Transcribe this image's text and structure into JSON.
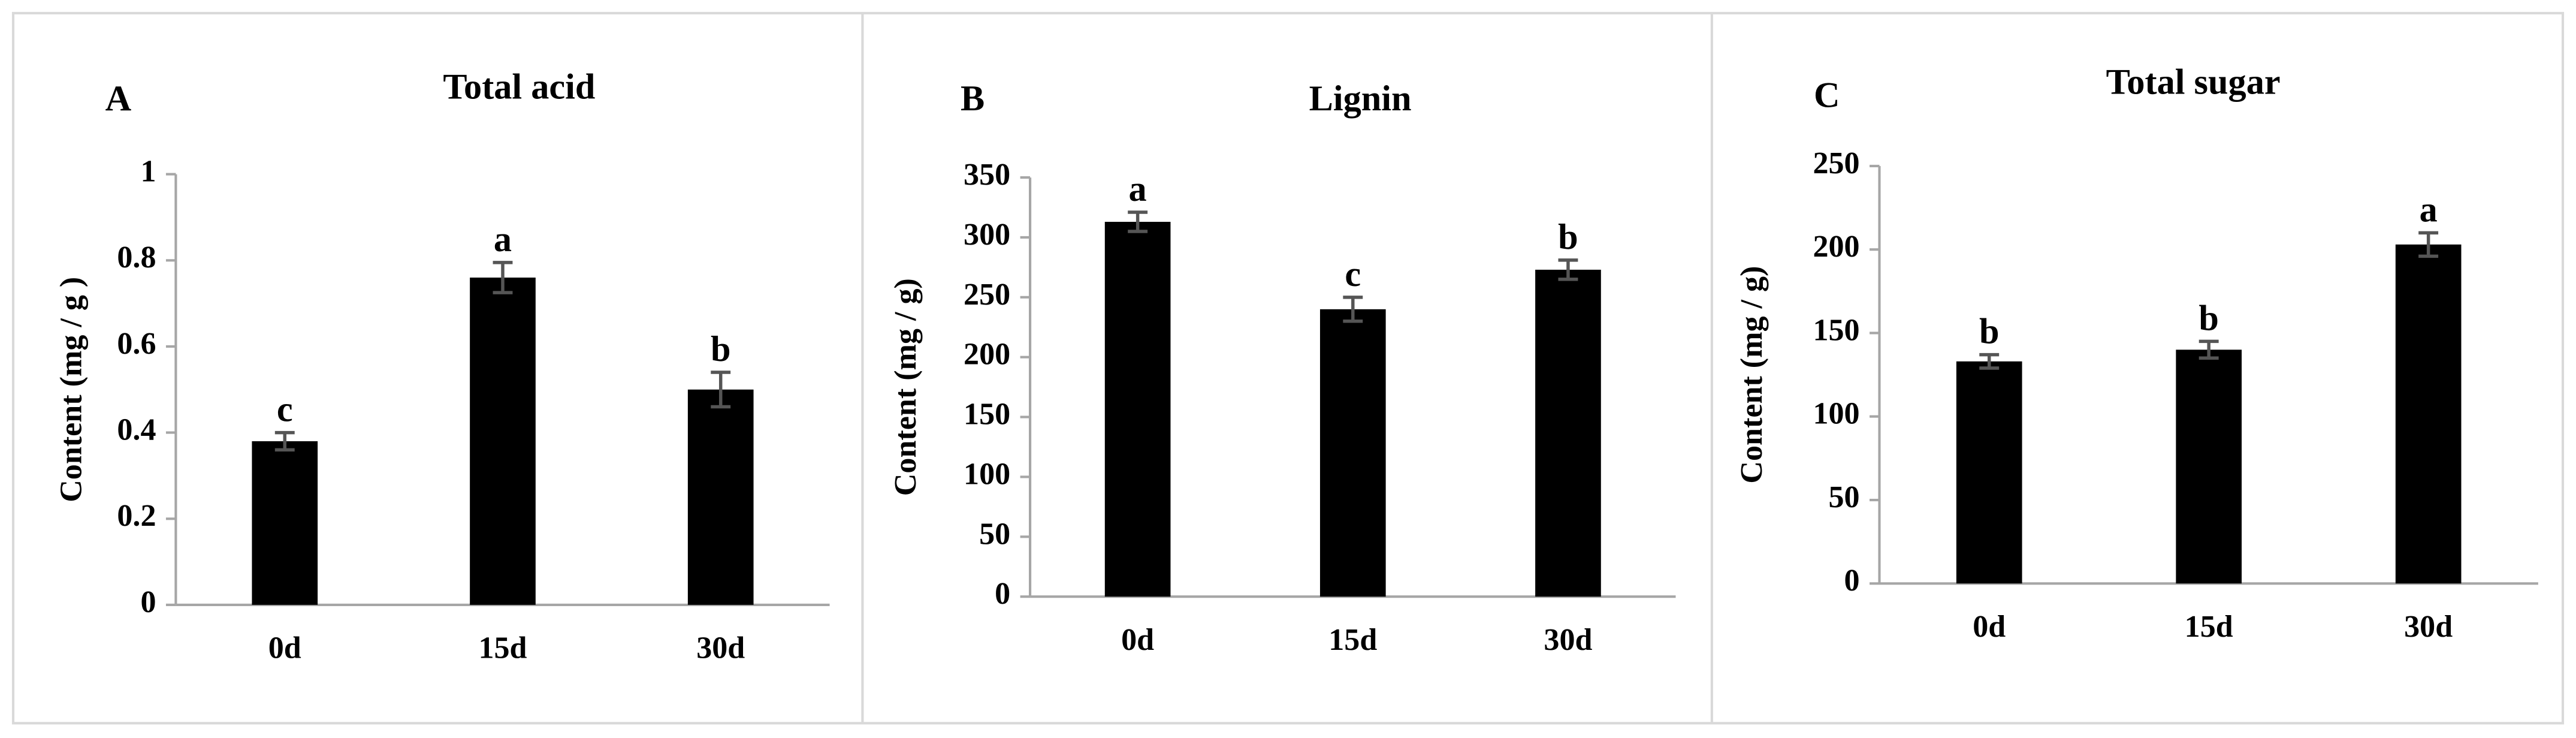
{
  "chart_data": [
    {
      "type": "bar",
      "panel_label": "A",
      "title": "Total acid",
      "ylabel": "Content (mg / g )",
      "categories": [
        "0d",
        "15d",
        "30d"
      ],
      "values": [
        0.38,
        0.76,
        0.5
      ],
      "errors": [
        0.02,
        0.035,
        0.04
      ],
      "annotations": [
        "c",
        "a",
        "b"
      ],
      "color": "#000000",
      "error_color": "#555555",
      "ylim": [
        0,
        1
      ],
      "yticks": [
        0,
        0.2,
        0.4,
        0.6,
        0.8,
        1
      ]
    },
    {
      "type": "bar",
      "panel_label": "B",
      "title": "Lignin",
      "ylabel": "Content (mg / g)",
      "categories": [
        "0d",
        "15d",
        "30d"
      ],
      "values": [
        313,
        240,
        273
      ],
      "errors": [
        8,
        10,
        8
      ],
      "annotations": [
        "a",
        "c",
        "b"
      ],
      "color": "#000000",
      "error_color": "#555555",
      "ylim": [
        0,
        350
      ],
      "yticks": [
        0,
        50,
        100,
        150,
        200,
        250,
        300,
        350
      ]
    },
    {
      "type": "bar",
      "panel_label": "C",
      "title": "Total sugar",
      "ylabel": "Content (mg / g)",
      "categories": [
        "0d",
        "15d",
        "30d"
      ],
      "values": [
        133,
        140,
        203
      ],
      "errors": [
        4,
        5,
        7
      ],
      "annotations": [
        "b",
        "b",
        "a"
      ],
      "color": "#000000",
      "error_color": "#555555",
      "ylim": [
        0,
        250
      ],
      "yticks": [
        0,
        50,
        100,
        150,
        200,
        250
      ]
    }
  ]
}
